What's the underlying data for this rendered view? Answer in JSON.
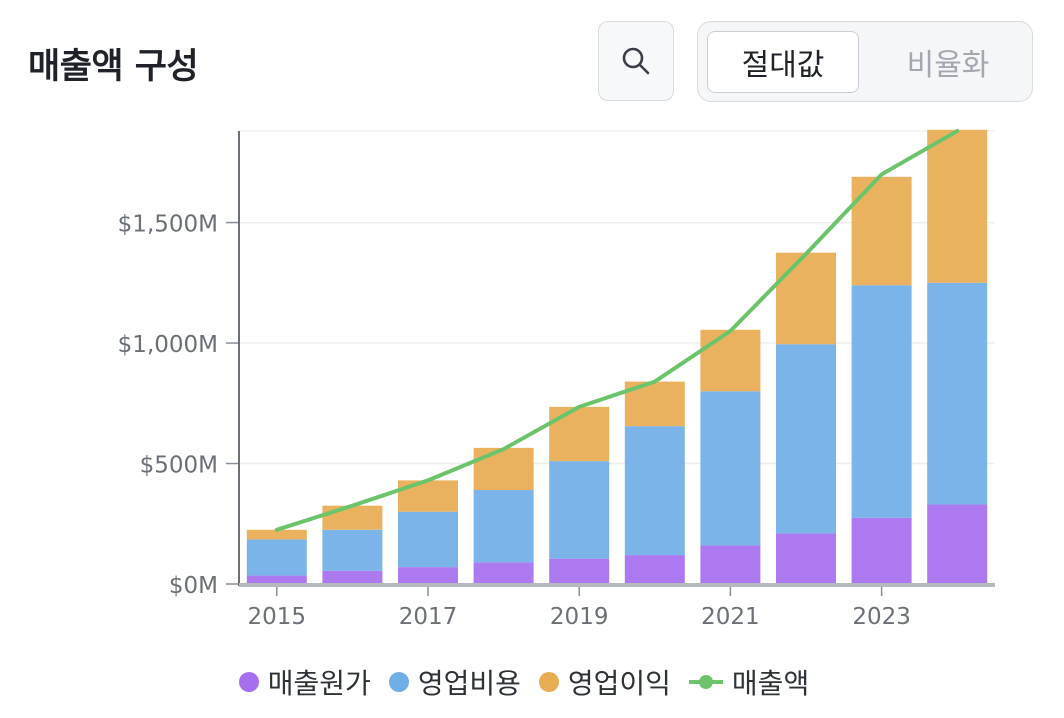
{
  "header": {
    "title": "매출액 구성",
    "search_icon": "search-icon",
    "toggle": {
      "absolute": "절대값",
      "ratio": "비율화"
    }
  },
  "colors": {
    "cost": "#a66ff0",
    "opex": "#70aee6",
    "profit": "#e8ac52",
    "revenue": "#6cc46a"
  },
  "chart_data": {
    "type": "bar",
    "stacked": true,
    "title": "매출액 구성",
    "categories": [
      "2015",
      "2016",
      "2017",
      "2018",
      "2019",
      "2020",
      "2021",
      "2022",
      "2023",
      "2024"
    ],
    "x_tick_labels": [
      "2015",
      "2017",
      "2019",
      "2021",
      "2023"
    ],
    "y_tick_labels": [
      "$0M",
      "$500M",
      "$1,000M",
      "$1,500M"
    ],
    "y_ticks": [
      0,
      500,
      1000,
      1500
    ],
    "ylim": [
      0,
      1880
    ],
    "series": [
      {
        "name": "매출원가",
        "type": "bar",
        "values": [
          35,
          55,
          70,
          90,
          105,
          120,
          160,
          210,
          275,
          330
        ]
      },
      {
        "name": "영업비용",
        "type": "bar",
        "values": [
          150,
          170,
          230,
          300,
          405,
          535,
          640,
          785,
          965,
          920
        ]
      },
      {
        "name": "영업이익",
        "type": "bar",
        "values": [
          40,
          100,
          130,
          175,
          225,
          185,
          255,
          380,
          450,
          635
        ]
      },
      {
        "name": "매출액",
        "type": "line",
        "values": [
          225,
          325,
          430,
          560,
          735,
          840,
          1050,
          1370,
          1700,
          1885
        ]
      }
    ],
    "legend": [
      "매출원가",
      "영업비용",
      "영업이익",
      "매출액"
    ],
    "legend_position": "bottom"
  }
}
